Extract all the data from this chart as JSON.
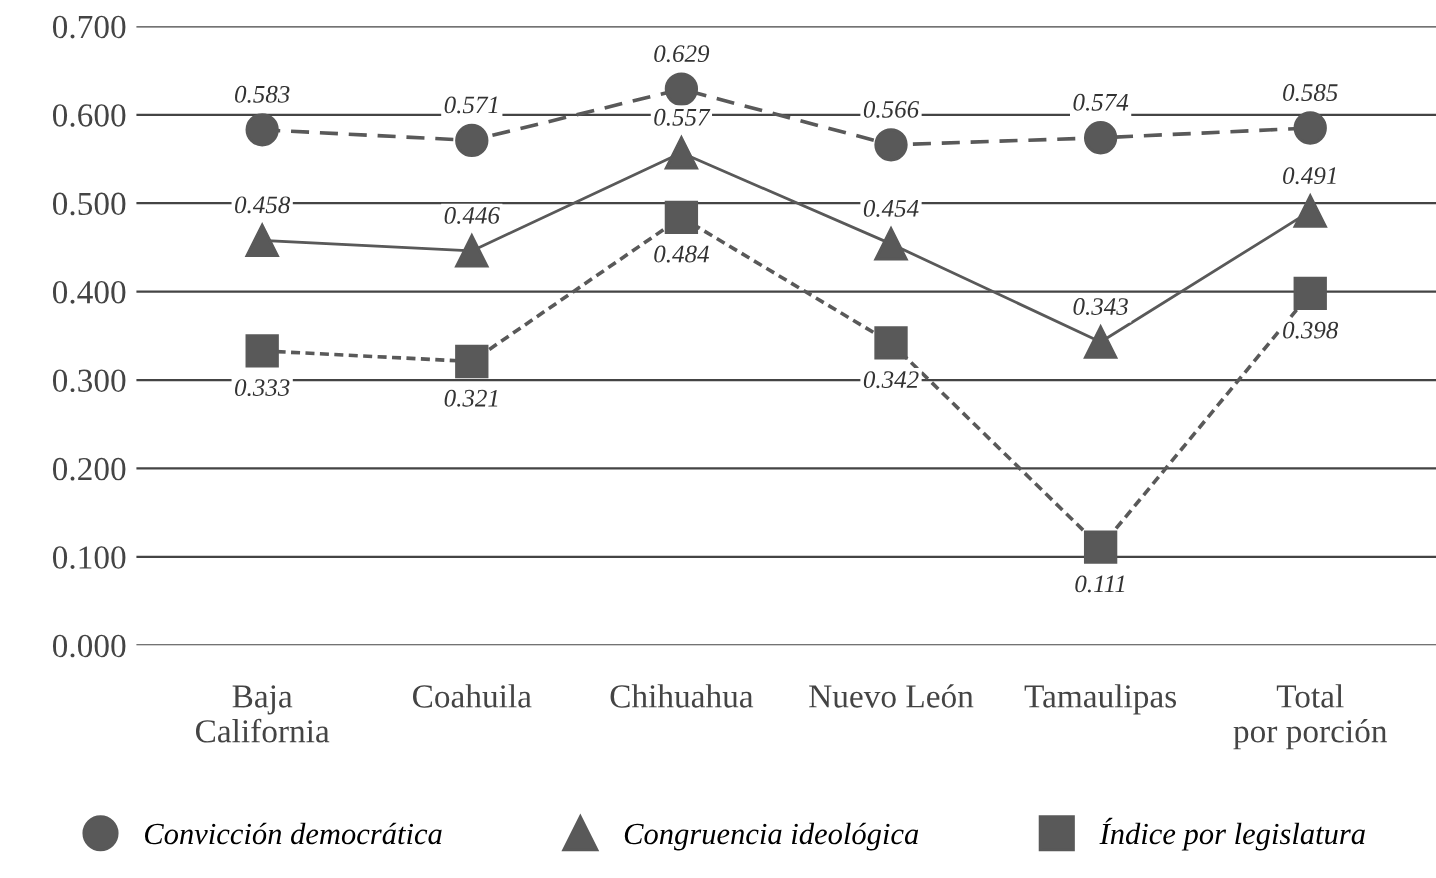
{
  "chart_data": {
    "type": "line",
    "categories": [
      "Baja\nCalifornia",
      "Coahuila",
      "Chihuahua",
      "Nuevo León",
      "Tamaulipas",
      "Total\npor porción"
    ],
    "series": [
      {
        "name": "Convicción democrática",
        "color": "#595959",
        "marker": "circle",
        "line_style": "dashed",
        "values": [
          0.583,
          0.571,
          0.629,
          0.566,
          0.574,
          0.585
        ]
      },
      {
        "name": "Congruencia ideológica",
        "color": "#595959",
        "marker": "triangle",
        "line_style": "solid",
        "values": [
          0.458,
          0.446,
          0.557,
          0.454,
          0.343,
          0.491
        ]
      },
      {
        "name": "Índice por legislatura",
        "color": "#595959",
        "marker": "square",
        "line_style": "dotted",
        "values": [
          0.333,
          0.321,
          0.484,
          0.342,
          0.111,
          0.398
        ]
      }
    ],
    "ylim": [
      0,
      0.7
    ],
    "yticks": [
      {
        "value": 0,
        "label": "0.000"
      },
      {
        "value": 0.1,
        "label": "0.100"
      },
      {
        "value": 0.2,
        "label": "0.200"
      },
      {
        "value": 0.3,
        "label": "0.300"
      },
      {
        "value": 0.4,
        "label": "0.400"
      },
      {
        "value": 0.5,
        "label": "0.500"
      },
      {
        "value": 0.6,
        "label": "0.600"
      },
      {
        "value": 0.7,
        "label": "0.700"
      }
    ],
    "grid": "y",
    "legend": "bottom",
    "data_labels": true
  }
}
